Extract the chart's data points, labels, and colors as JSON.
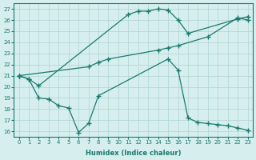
{
  "line1_x": [
    0,
    1,
    2,
    11,
    12,
    13,
    14,
    15,
    16,
    17,
    22,
    23
  ],
  "line1_y": [
    21.0,
    20.7,
    20.1,
    26.5,
    26.8,
    26.8,
    27.0,
    26.9,
    26.0,
    24.8,
    26.1,
    26.3
  ],
  "line2_x": [
    0,
    7,
    8,
    9,
    14,
    15,
    16,
    19,
    22,
    23
  ],
  "line2_y": [
    21.0,
    21.8,
    22.2,
    22.5,
    23.3,
    23.5,
    23.7,
    24.5,
    26.2,
    26.0
  ],
  "line3_x": [
    0,
    1,
    2,
    3,
    4,
    5,
    6,
    7,
    8,
    15,
    16,
    17,
    18,
    19,
    20,
    21,
    22,
    23
  ],
  "line3_y": [
    21.0,
    20.7,
    19.0,
    18.9,
    18.3,
    18.1,
    15.9,
    16.7,
    19.2,
    22.5,
    21.5,
    17.2,
    16.8,
    16.7,
    16.6,
    16.5,
    16.3,
    16.1
  ],
  "color": "#1a7a6e",
  "bg_color": "#d6eeee",
  "grid_color": "#b0d4d4",
  "xlabel": "Humidex (Indice chaleur)",
  "xlim": [
    -0.5,
    23.5
  ],
  "ylim": [
    15.5,
    27.5
  ],
  "yticks": [
    16,
    17,
    18,
    19,
    20,
    21,
    22,
    23,
    24,
    25,
    26,
    27
  ],
  "xticks": [
    0,
    1,
    2,
    3,
    4,
    5,
    6,
    7,
    8,
    9,
    10,
    11,
    12,
    13,
    14,
    15,
    16,
    17,
    18,
    19,
    20,
    21,
    22,
    23
  ]
}
